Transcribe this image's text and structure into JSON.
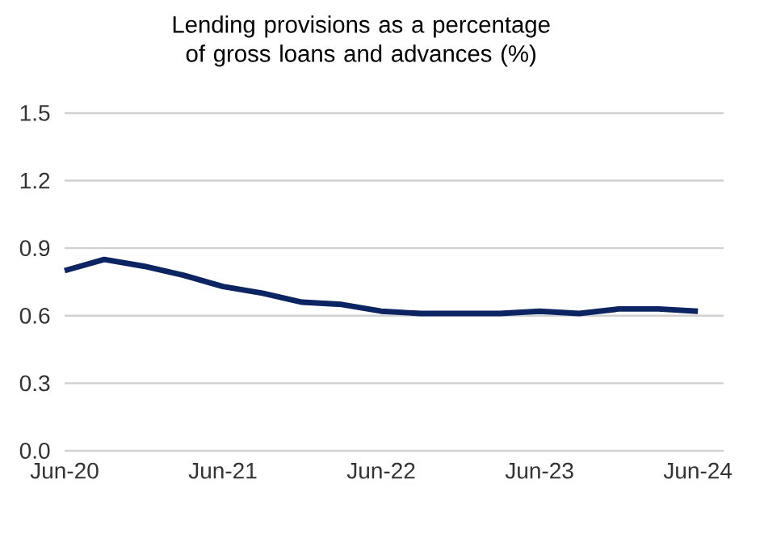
{
  "chart_data": {
    "type": "line",
    "title": "Lending provisions as a percentage of gross loans and advances (%)",
    "categories": [
      "Jun-20",
      null,
      null,
      null,
      "Jun-21",
      null,
      null,
      null,
      "Jun-22",
      null,
      null,
      null,
      "Jun-23",
      null,
      null,
      null,
      "Jun-24"
    ],
    "series": [
      {
        "color": "#0c2461",
        "values": [
          0.8,
          0.85,
          0.82,
          0.78,
          0.73,
          0.7,
          0.66,
          0.65,
          0.62,
          0.61,
          0.61,
          0.61,
          0.62,
          0.61,
          0.63,
          0.63,
          0.62
        ]
      }
    ],
    "ylim": [
      0,
      1.5
    ],
    "yticks": [
      {
        "value": 0,
        "label": "0.0"
      },
      0.3,
      0.6,
      0.9,
      1.2,
      1.5
    ],
    "grid": "y"
  }
}
